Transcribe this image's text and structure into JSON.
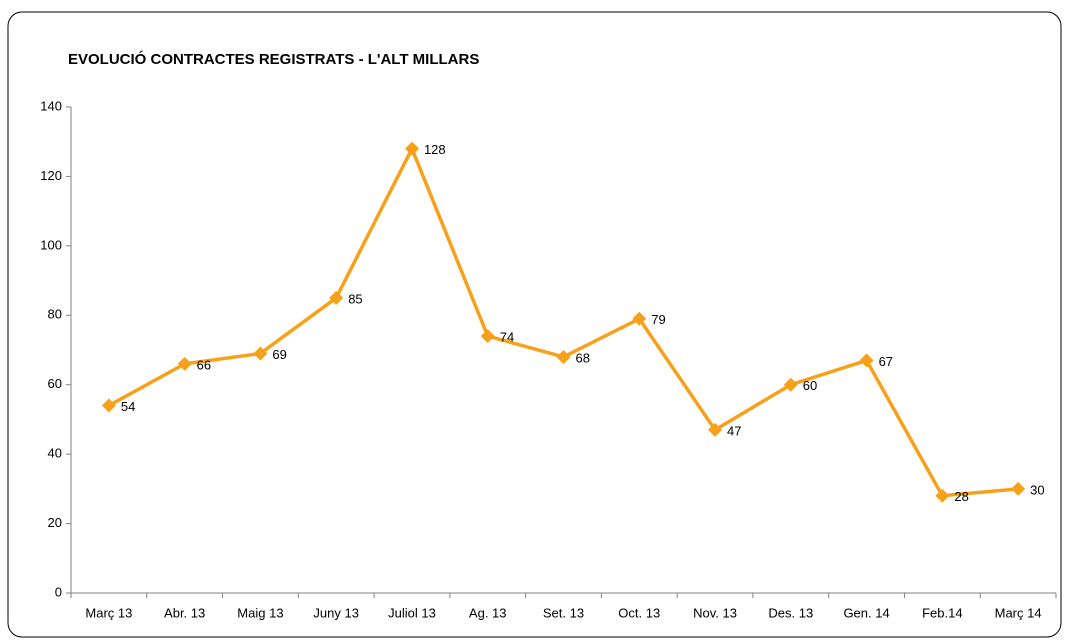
{
  "chart_data": {
    "type": "line",
    "title": "EVOLUCIÓ CONTRACTES REGISTRATS - L'ALT MILLARS",
    "categories": [
      "Març 13",
      "Abr. 13",
      "Maig 13",
      "Juny 13",
      "Juliol 13",
      "Ag. 13",
      "Set. 13",
      "Oct. 13",
      "Nov. 13",
      "Des. 13",
      "Gen. 14",
      "Feb.14",
      "Març 14"
    ],
    "values": [
      54,
      66,
      69,
      85,
      128,
      74,
      68,
      79,
      47,
      60,
      67,
      28,
      30
    ],
    "color": "#f7a11a",
    "ylim": [
      0,
      140
    ],
    "yticks": [
      0,
      20,
      40,
      60,
      80,
      100,
      120,
      140
    ],
    "grid": false,
    "data_labels": true
  }
}
